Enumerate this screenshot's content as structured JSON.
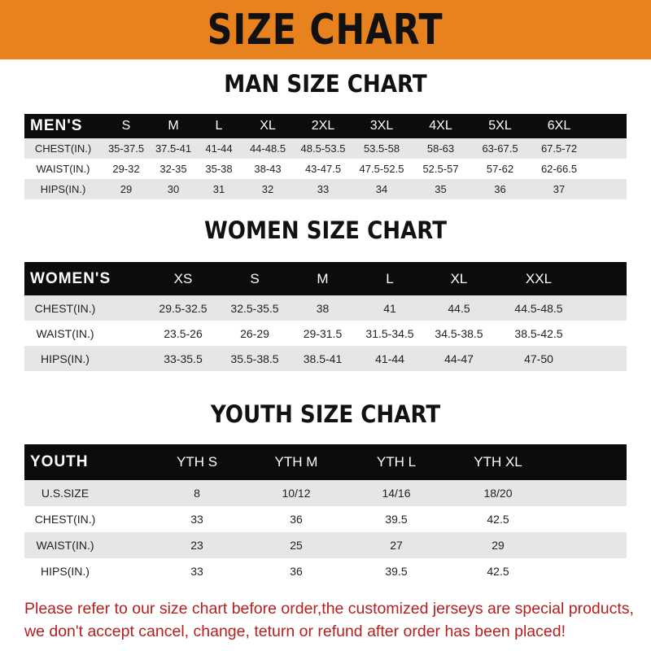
{
  "banner_title": "SIZE CHART",
  "colors": {
    "banner": "#e8821f",
    "header_row": "#0d0b0b",
    "note": "#b3201f"
  },
  "men": {
    "title": "MAN SIZE CHART",
    "header": [
      "MEN'S",
      "S",
      "M",
      "L",
      "XL",
      "2XL",
      "3XL",
      "4XL",
      "5XL",
      "6XL"
    ],
    "rows": [
      [
        "CHEST(IN.)",
        "35-37.5",
        "37.5-41",
        "41-44",
        "44-48.5",
        "48.5-53.5",
        "53.5-58",
        "58-63",
        "63-67.5",
        "67.5-72"
      ],
      [
        "WAIST(IN.)",
        "29-32",
        "32-35",
        "35-38",
        "38-43",
        "43-47.5",
        "47.5-52.5",
        "52.5-57",
        "57-62",
        "62-66.5"
      ],
      [
        "HIPS(IN.)",
        "29",
        "30",
        "31",
        "32",
        "33",
        "34",
        "35",
        "36",
        "37"
      ]
    ]
  },
  "women": {
    "title": "WOMEN SIZE CHART",
    "header": [
      "WOMEN'S",
      "XS",
      "S",
      "M",
      "L",
      "XL",
      "XXL"
    ],
    "rows": [
      [
        "CHEST(IN.)",
        "29.5-32.5",
        "32.5-35.5",
        "38",
        "41",
        "44.5",
        "44.5-48.5"
      ],
      [
        "WAIST(IN.)",
        "23.5-26",
        "26-29",
        "29-31.5",
        "31.5-34.5",
        "34.5-38.5",
        "38.5-42.5"
      ],
      [
        "HIPS(IN.)",
        "33-35.5",
        "35.5-38.5",
        "38.5-41",
        "41-44",
        "44-47",
        "47-50"
      ]
    ]
  },
  "youth": {
    "title": "YOUTH SIZE CHART",
    "header": [
      "YOUTH",
      "YTH S",
      "YTH M",
      "YTH L",
      "YTH XL"
    ],
    "rows": [
      [
        "U.S.SIZE",
        "8",
        "10/12",
        "14/16",
        "18/20"
      ],
      [
        "CHEST(IN.)",
        "33",
        "36",
        "39.5",
        "42.5"
      ],
      [
        "WAIST(IN.)",
        "23",
        "25",
        "27",
        "29"
      ],
      [
        "HIPS(IN.)",
        "33",
        "36",
        "39.5",
        "42.5"
      ]
    ]
  },
  "note": [
    "Please refer to our size chart before order,the customized jerseys are special products,",
    "we don't accept cancel, change, teturn or refund after order has been placed!"
  ]
}
